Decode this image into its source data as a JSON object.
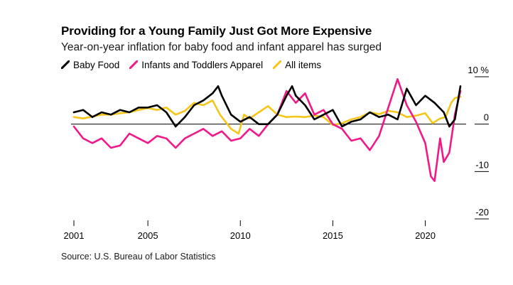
{
  "chart_data": {
    "type": "line",
    "title": "Providing for a Young Family Just Got More Expensive",
    "subtitle": "Year-on-year inflation for baby food and infant apparel has surged",
    "source": "Source: U.S. Bureau of Labor Statistics",
    "xlabel": "",
    "ylabel": "",
    "xlim": [
      2001,
      2021.9
    ],
    "ylim": [
      -20,
      10
    ],
    "x_ticks": [
      2001,
      2005,
      2010,
      2015,
      2020
    ],
    "x_tick_labels": [
      "2001",
      "2005",
      "2010",
      "2015",
      "2020"
    ],
    "y_ticks": [
      10,
      0,
      -10,
      -20
    ],
    "y_tick_labels": [
      "10 %",
      "0",
      "-10",
      "-20"
    ],
    "grid": false,
    "legend_position": "top-left",
    "series": [
      {
        "name": "Baby Food",
        "color": "#000000",
        "points": [
          [
            2001,
            2.5
          ],
          [
            2001.5,
            3
          ],
          [
            2002,
            1.5
          ],
          [
            2002.5,
            2.5
          ],
          [
            2003,
            2
          ],
          [
            2003.5,
            3
          ],
          [
            2004,
            2.5
          ],
          [
            2004.5,
            3.5
          ],
          [
            2005,
            3.5
          ],
          [
            2005.5,
            4
          ],
          [
            2006,
            2.5
          ],
          [
            2006.5,
            -0.5
          ],
          [
            2007,
            1.5
          ],
          [
            2007.5,
            4
          ],
          [
            2008,
            5
          ],
          [
            2008.5,
            6.5
          ],
          [
            2008.8,
            8
          ],
          [
            2009,
            6
          ],
          [
            2009.5,
            2
          ],
          [
            2010,
            0.5
          ],
          [
            2010.5,
            1.5
          ],
          [
            2011,
            0
          ],
          [
            2011.5,
            0
          ],
          [
            2012,
            2
          ],
          [
            2012.5,
            6
          ],
          [
            2012.8,
            8
          ],
          [
            2013,
            6
          ],
          [
            2013.5,
            4
          ],
          [
            2014,
            1
          ],
          [
            2014.5,
            2
          ],
          [
            2015,
            3
          ],
          [
            2015.5,
            -0.5
          ],
          [
            2016,
            0.5
          ],
          [
            2016.5,
            1
          ],
          [
            2017,
            2.5
          ],
          [
            2017.5,
            1.5
          ],
          [
            2018,
            2
          ],
          [
            2018.5,
            1
          ],
          [
            2019,
            7.5
          ],
          [
            2019.5,
            4
          ],
          [
            2020,
            6
          ],
          [
            2020.5,
            4.5
          ],
          [
            2021,
            2.5
          ],
          [
            2021.3,
            -0.5
          ],
          [
            2021.6,
            1
          ],
          [
            2021.9,
            8
          ]
        ]
      },
      {
        "name": "Infants and Toddlers Apparel",
        "color": "#f0198a",
        "points": [
          [
            2001,
            -0.5
          ],
          [
            2001.5,
            -3
          ],
          [
            2002,
            -4
          ],
          [
            2002.5,
            -3
          ],
          [
            2003,
            -5
          ],
          [
            2003.5,
            -4.5
          ],
          [
            2004,
            -2
          ],
          [
            2004.5,
            -3
          ],
          [
            2005,
            -4
          ],
          [
            2005.5,
            -2.5
          ],
          [
            2006,
            -3
          ],
          [
            2006.5,
            -5
          ],
          [
            2007,
            -3
          ],
          [
            2007.5,
            -2
          ],
          [
            2008,
            -1
          ],
          [
            2008.5,
            -2.5
          ],
          [
            2009,
            -1.5
          ],
          [
            2009.5,
            -3.5
          ],
          [
            2010,
            -3
          ],
          [
            2010.5,
            -1
          ],
          [
            2011,
            -2.5
          ],
          [
            2011.5,
            0
          ],
          [
            2012,
            2
          ],
          [
            2012.5,
            7
          ],
          [
            2013,
            4.5
          ],
          [
            2013.5,
            6.5
          ],
          [
            2014,
            2
          ],
          [
            2014.5,
            3
          ],
          [
            2015,
            0
          ],
          [
            2015.5,
            -1
          ],
          [
            2016,
            -3.5
          ],
          [
            2016.5,
            -3
          ],
          [
            2017,
            -5.5
          ],
          [
            2017.5,
            -2.5
          ],
          [
            2018,
            3.5
          ],
          [
            2018.5,
            9.5
          ],
          [
            2019,
            4
          ],
          [
            2019.5,
            0.5
          ],
          [
            2020,
            -4
          ],
          [
            2020.3,
            -11
          ],
          [
            2020.5,
            -12
          ],
          [
            2020.8,
            -3
          ],
          [
            2021,
            -8
          ],
          [
            2021.3,
            -6
          ],
          [
            2021.6,
            2
          ],
          [
            2021.9,
            7
          ]
        ]
      },
      {
        "name": "All items",
        "color": "#f5c518",
        "points": [
          [
            2001,
            1.5
          ],
          [
            2001.5,
            1.2
          ],
          [
            2002,
            1.6
          ],
          [
            2002.5,
            2
          ],
          [
            2003,
            2
          ],
          [
            2003.5,
            2.3
          ],
          [
            2004,
            2.5
          ],
          [
            2004.5,
            3
          ],
          [
            2005,
            3.4
          ],
          [
            2005.5,
            3
          ],
          [
            2006,
            3.5
          ],
          [
            2006.5,
            2
          ],
          [
            2007,
            2.8
          ],
          [
            2007.5,
            4.5
          ],
          [
            2008,
            4
          ],
          [
            2008.5,
            5
          ],
          [
            2008.9,
            2
          ],
          [
            2009.5,
            -1
          ],
          [
            2009.9,
            -2
          ],
          [
            2010.2,
            2
          ],
          [
            2010.5,
            1.2
          ],
          [
            2011,
            2.5
          ],
          [
            2011.5,
            3.8
          ],
          [
            2012,
            2
          ],
          [
            2012.5,
            1.5
          ],
          [
            2013,
            1.6
          ],
          [
            2013.5,
            1.5
          ],
          [
            2014,
            1.8
          ],
          [
            2014.5,
            1.5
          ],
          [
            2015,
            -0.2
          ],
          [
            2015.5,
            0.2
          ],
          [
            2016,
            1
          ],
          [
            2016.5,
            1.5
          ],
          [
            2017,
            2.5
          ],
          [
            2017.5,
            2.1
          ],
          [
            2018,
            2.8
          ],
          [
            2018.5,
            2.5
          ],
          [
            2019,
            1.5
          ],
          [
            2019.5,
            1.8
          ],
          [
            2020,
            2.3
          ],
          [
            2020.4,
            0.2
          ],
          [
            2020.8,
            1.2
          ],
          [
            2021.1,
            1.5
          ],
          [
            2021.4,
            4.5
          ],
          [
            2021.6,
            5.5
          ],
          [
            2021.9,
            5.8
          ]
        ]
      }
    ]
  }
}
